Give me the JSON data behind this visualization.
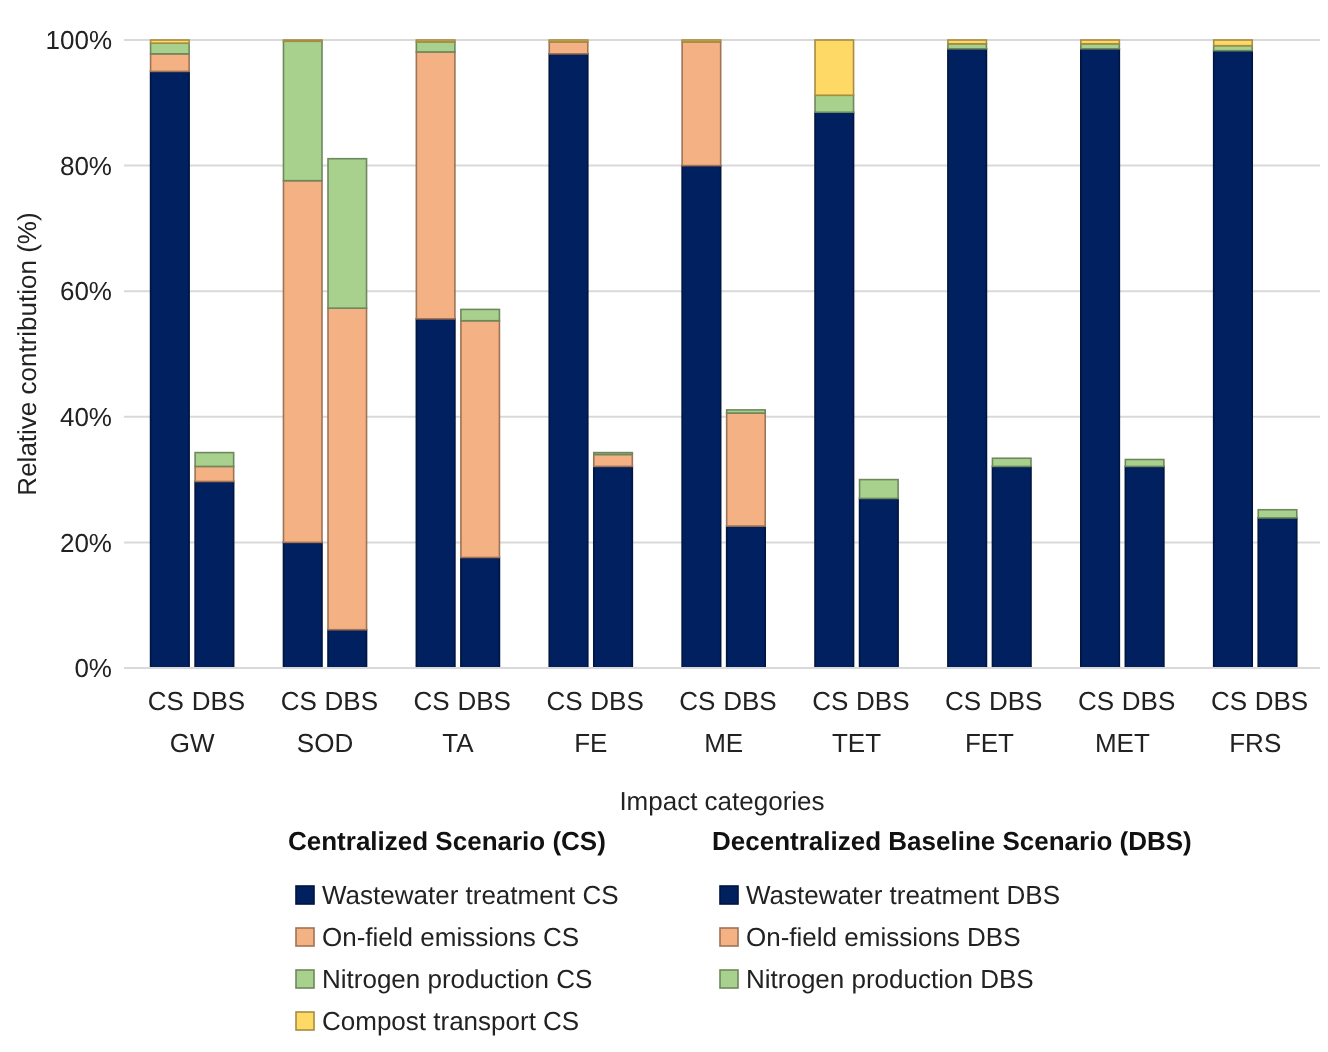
{
  "chart_data": {
    "type": "bar",
    "stacked": true,
    "ylabel": "Relative contribution (%)",
    "xlabel": "Impact categories",
    "categories": [
      "CS",
      "DBS",
      "CS",
      "DBS",
      "CS",
      "DBS",
      "CS",
      "DBS",
      "CS",
      "DBS",
      "CS",
      "DBS",
      "CS",
      "DBS",
      "CS",
      "DBS",
      "CS",
      "DBS"
    ],
    "annotations": [
      "GW",
      "SOD",
      "TA",
      "FE",
      "ME",
      "TET",
      "FET",
      "MET",
      "FRS"
    ],
    "legend_title": [
      "Centralized Scenario (CS)",
      "Decentralized Baseline Scenario (DBS)"
    ],
    "ylim": [
      0,
      100
    ],
    "yticks": [
      {
        "value": 0,
        "label": "0%"
      },
      {
        "value": 20,
        "label": "20%"
      },
      {
        "value": 40,
        "label": "40%"
      },
      {
        "value": 60,
        "label": "60%"
      },
      {
        "value": 80,
        "label": "80%"
      },
      {
        "value": 100,
        "label": "100%"
      }
    ],
    "grid": "y",
    "legend": "bottom",
    "series": [
      {
        "name": "Wastewater treatment CS",
        "color": "#002060",
        "values": [
          95,
          null,
          20,
          null,
          55.6,
          null,
          97.8,
          null,
          80,
          null,
          88.5,
          null,
          98.6,
          null,
          98.6,
          null,
          98.3,
          null
        ]
      },
      {
        "name": "On-field emissions CS",
        "color": "#f4b183",
        "values": [
          2.8,
          null,
          57.6,
          null,
          42.5,
          null,
          1.9,
          null,
          19.7,
          null,
          0,
          null,
          0,
          null,
          0,
          null,
          0,
          null
        ]
      },
      {
        "name": "Nitrogen production CS",
        "color": "#a9d18e",
        "values": [
          1.7,
          null,
          22.2,
          null,
          1.6,
          null,
          0,
          null,
          0,
          null,
          2.7,
          null,
          0.8,
          null,
          0.8,
          null,
          0.8,
          null
        ]
      },
      {
        "name": "Compost transport CS",
        "color": "#ffd966",
        "values": [
          0.5,
          null,
          0.2,
          null,
          0.3,
          null,
          0.3,
          null,
          0.3,
          null,
          8.8,
          null,
          0.6,
          null,
          0.6,
          null,
          0.9,
          null
        ]
      },
      {
        "name": "Wastewater treatment DBS",
        "color": "#002060",
        "values": [
          null,
          29.7,
          null,
          6.1,
          null,
          17.6,
          null,
          32.1,
          null,
          22.6,
          null,
          27,
          null,
          32.1,
          null,
          32.1,
          null,
          23.9
        ]
      },
      {
        "name": "On-field emissions DBS",
        "color": "#f4b183",
        "values": [
          null,
          2.4,
          null,
          51.2,
          null,
          37.7,
          null,
          1.9,
          null,
          18,
          null,
          0,
          null,
          0,
          null,
          0,
          null,
          0
        ]
      },
      {
        "name": "Nitrogen production DBS",
        "color": "#a9d18e",
        "values": [
          null,
          2.2,
          null,
          23.8,
          null,
          1.8,
          null,
          0.3,
          null,
          0.5,
          null,
          3,
          null,
          1.3,
          null,
          1.1,
          null,
          1.3
        ]
      }
    ]
  }
}
